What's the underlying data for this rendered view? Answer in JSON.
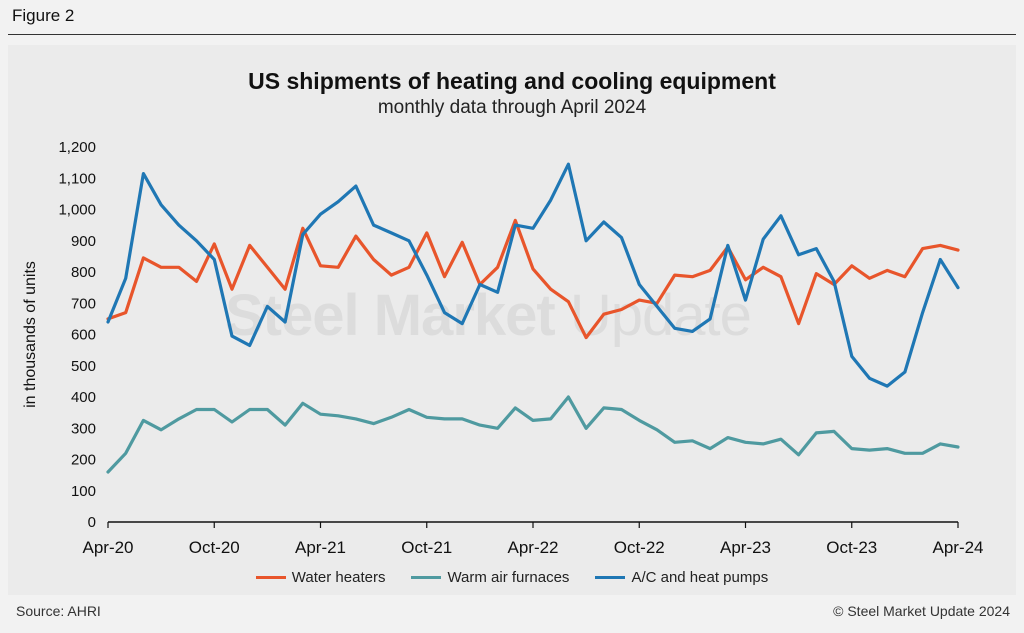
{
  "figure_label": "Figure 2",
  "source": "Source: AHRI",
  "copyright": "© Steel Market Update 2024",
  "watermark": {
    "bold": "Steel Market",
    "light": "Update"
  },
  "colors": {
    "water_heaters": "#e8552b",
    "warm_air_furnaces": "#4f9aa0",
    "ac_heat_pumps": "#1f77b4",
    "axis": "#111111"
  },
  "chart_data": {
    "type": "line",
    "title": "US shipments of heating and cooling equipment",
    "subtitle": "monthly data through April 2024",
    "ylabel": "in thousands of units",
    "xlabel": "",
    "ylim": [
      0,
      1200
    ],
    "yticks": [
      0,
      100,
      200,
      300,
      400,
      500,
      600,
      700,
      800,
      900,
      1000,
      1100,
      1200
    ],
    "ytick_labels": [
      "0",
      "100",
      "200",
      "300",
      "400",
      "500",
      "600",
      "700",
      "800",
      "900",
      "1,000",
      "1,100",
      "1,200"
    ],
    "xtick_labels": [
      "Apr-20",
      "Oct-20",
      "Apr-21",
      "Oct-21",
      "Apr-22",
      "Oct-22",
      "Apr-23",
      "Oct-23",
      "Apr-24"
    ],
    "xtick_every": 6,
    "x": [
      "Apr-20",
      "May-20",
      "Jun-20",
      "Jul-20",
      "Aug-20",
      "Sep-20",
      "Oct-20",
      "Nov-20",
      "Dec-20",
      "Jan-21",
      "Feb-21",
      "Mar-21",
      "Apr-21",
      "May-21",
      "Jun-21",
      "Jul-21",
      "Aug-21",
      "Sep-21",
      "Oct-21",
      "Nov-21",
      "Dec-21",
      "Jan-22",
      "Feb-22",
      "Mar-22",
      "Apr-22",
      "May-22",
      "Jun-22",
      "Jul-22",
      "Aug-22",
      "Sep-22",
      "Oct-22",
      "Nov-22",
      "Dec-22",
      "Jan-23",
      "Feb-23",
      "Mar-23",
      "Apr-23",
      "May-23",
      "Jun-23",
      "Jul-23",
      "Aug-23",
      "Sep-23",
      "Oct-23",
      "Nov-23",
      "Dec-23",
      "Jan-24",
      "Feb-24",
      "Mar-24",
      "Apr-24"
    ],
    "series": [
      {
        "name": "Water heaters",
        "key": "water_heaters",
        "values": [
          650,
          670,
          845,
          815,
          815,
          770,
          890,
          745,
          885,
          815,
          745,
          940,
          820,
          815,
          915,
          840,
          790,
          815,
          925,
          785,
          895,
          760,
          815,
          965,
          810,
          745,
          705,
          590,
          665,
          680,
          710,
          700,
          790,
          785,
          805,
          880,
          775,
          815,
          785,
          635,
          795,
          760,
          820,
          780,
          805,
          785,
          875,
          885,
          870
        ]
      },
      {
        "name": "Warm air furnaces",
        "key": "warm_air_furnaces",
        "values": [
          160,
          220,
          325,
          295,
          330,
          360,
          360,
          320,
          360,
          360,
          310,
          380,
          345,
          340,
          330,
          315,
          335,
          360,
          335,
          330,
          330,
          310,
          300,
          365,
          325,
          330,
          400,
          300,
          365,
          360,
          325,
          295,
          255,
          260,
          235,
          270,
          255,
          250,
          265,
          215,
          285,
          290,
          235,
          230,
          235,
          220,
          220,
          250,
          240
        ]
      },
      {
        "name": "A/C and heat pumps",
        "key": "ac_heat_pumps",
        "values": [
          640,
          780,
          1115,
          1015,
          950,
          900,
          840,
          595,
          565,
          690,
          640,
          920,
          985,
          1025,
          1075,
          950,
          925,
          900,
          790,
          670,
          635,
          760,
          735,
          950,
          940,
          1030,
          1145,
          900,
          960,
          910,
          760,
          690,
          620,
          610,
          650,
          885,
          710,
          905,
          980,
          855,
          875,
          770,
          530,
          460,
          435,
          480,
          670,
          840,
          750
        ]
      }
    ]
  }
}
